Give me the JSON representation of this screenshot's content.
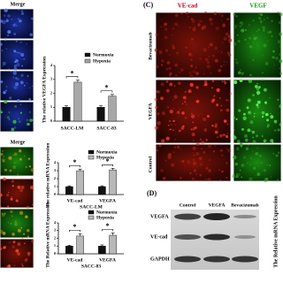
{
  "left_panel": {
    "merge_labels": [
      "Merge",
      "Merge"
    ]
  },
  "chart_data": [
    {
      "type": "bar",
      "ylabel": "The relative VEGFA Expression",
      "categories": [
        "SACC-LM",
        "SACC-83"
      ],
      "series": [
        {
          "name": "Normoxia",
          "color": "#111111",
          "values": [
            1.0,
            1.0
          ],
          "errors": [
            0.1,
            0.1
          ]
        },
        {
          "name": "Hypoxia",
          "color": "#a8a8a8",
          "values": [
            2.8,
            1.8
          ],
          "errors": [
            0.15,
            0.12
          ]
        }
      ],
      "significance": [
        "*",
        "*"
      ],
      "ylim": [
        0,
        4
      ],
      "yticks": [
        0,
        1,
        2,
        3,
        4
      ]
    },
    {
      "type": "bar",
      "ylabel": "The relative mRNA Expression",
      "subtitle": "SACC-LM",
      "categories": [
        "VE-cad",
        "VEGFA"
      ],
      "series": [
        {
          "name": "Normoxia",
          "color": "#111111",
          "values": [
            1.0,
            1.0
          ],
          "errors": [
            0.1,
            0.1
          ]
        },
        {
          "name": "Hypoxia",
          "color": "#b8b8b8",
          "values": [
            3.0,
            3.1
          ],
          "errors": [
            0.2,
            0.2
          ]
        }
      ],
      "significance": [
        "*",
        "*"
      ],
      "ylim": [
        0,
        4
      ],
      "yticks": [
        0,
        1,
        2,
        3,
        4
      ]
    },
    {
      "type": "bar",
      "ylabel": "The Relative mRNA Expression",
      "subtitle": "SACC-83",
      "categories": [
        "VE-cad",
        "VEGFA"
      ],
      "series": [
        {
          "name": "Normoxia",
          "color": "#111111",
          "values": [
            1.0,
            1.0
          ],
          "errors": [
            0.1,
            0.15
          ]
        },
        {
          "name": "Hypoxia",
          "color": "#b8b8b8",
          "values": [
            2.3,
            2.4
          ],
          "errors": [
            0.3,
            0.3
          ]
        }
      ],
      "significance": [
        "*",
        "*"
      ],
      "ylim": [
        0,
        4
      ],
      "yticks": [
        0,
        1,
        2,
        3,
        4
      ]
    }
  ],
  "panel_c": {
    "label": "(C)",
    "columns": [
      "VE-cad",
      "VEGF"
    ],
    "rows": [
      "Bevacizumab",
      "VEGFA",
      "Control"
    ]
  },
  "panel_d": {
    "label": "(D)",
    "columns": [
      "Control",
      "VEGFA",
      "Bevacizumab"
    ],
    "rows": [
      "VEGFA",
      "VE-cad",
      "GAPDH"
    ],
    "side_label": "The Relative mRNA Expression"
  }
}
